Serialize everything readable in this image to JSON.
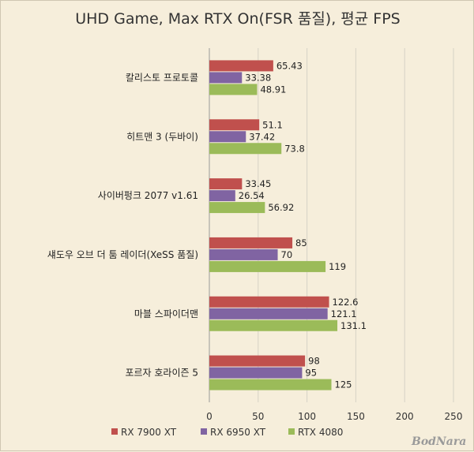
{
  "chart_data": {
    "type": "bar",
    "orientation": "horizontal",
    "title": "UHD Game, Max RTX On(FSR 품질), 평균 FPS",
    "categories": [
      "칼리스토 프로토콜",
      "히트맨 3 (두바이)",
      "사이버펑크 2077 v1.61",
      "섀도우 오브 더 툼 레이더(XeSS 품질)",
      "마블 스파이더맨",
      "포르자 호라이즌 5"
    ],
    "series": [
      {
        "name": "RX 7900 XT",
        "color": "#c0504d",
        "values": [
          65.43,
          51.1,
          33.45,
          85,
          122.6,
          98
        ],
        "labels": [
          "65.43",
          "51.1",
          "33.45",
          "85",
          "122.6",
          "98"
        ]
      },
      {
        "name": "RX 6950 XT",
        "color": "#8064a2",
        "values": [
          33.38,
          37.42,
          26.54,
          70,
          121.1,
          95
        ],
        "labels": [
          "33.38",
          "37.42",
          "26.54",
          "70",
          "121.1",
          "95"
        ]
      },
      {
        "name": "RTX 4080",
        "color": "#9bbb59",
        "values": [
          48.91,
          73.8,
          56.92,
          119,
          131.1,
          125
        ],
        "labels": [
          "48.91",
          "73.8",
          "56.92",
          "119",
          "131.1",
          "125"
        ]
      }
    ],
    "xlim": [
      0,
      250
    ],
    "xticks": [
      0,
      50,
      100,
      150,
      200,
      250
    ],
    "xtick_labels": [
      "0",
      "50",
      "100",
      "150",
      "200",
      "250"
    ],
    "grid": true,
    "legend_position": "bottom"
  },
  "watermark": "BodNara"
}
